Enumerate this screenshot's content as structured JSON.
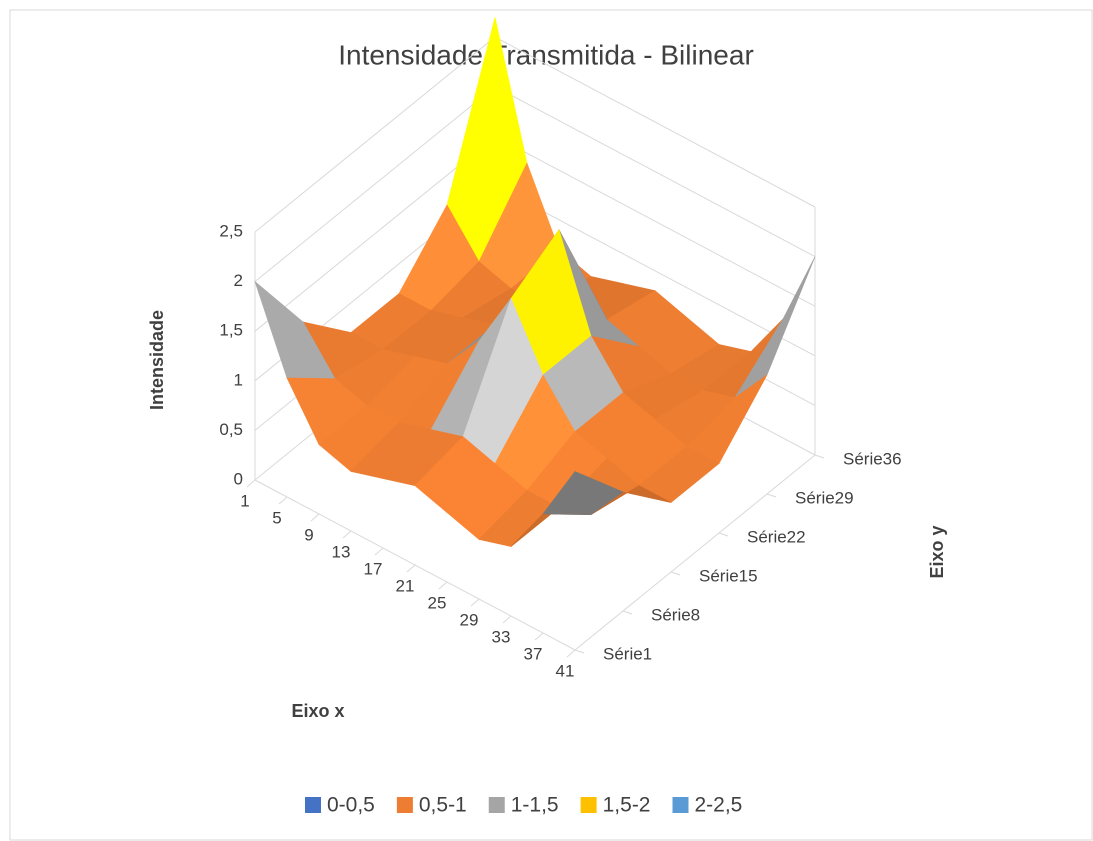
{
  "chart_data": {
    "type": "surface",
    "title": "Intensidade Transmitida - Bilinear",
    "x_label": "Eixo x",
    "y_label": "Eixo y",
    "z_label": "Intensidade",
    "categories": [
      1,
      5,
      9,
      13,
      17,
      21,
      25,
      29,
      33,
      37,
      41
    ],
    "series": [
      {
        "name": "Série1",
        "values": [
          2.0,
          1.2,
          0.7,
          0.6,
          0.7,
          0.8,
          0.7,
          0.6,
          0.7,
          1.2,
          1.8
        ]
      },
      {
        "name": "Série8",
        "values": [
          1.2,
          0.8,
          0.7,
          0.7,
          0.8,
          0.9,
          0.8,
          0.7,
          0.7,
          0.8,
          1.2
        ]
      },
      {
        "name": "Série15",
        "values": [
          0.7,
          0.7,
          0.8,
          0.9,
          1.3,
          1.9,
          1.3,
          0.9,
          0.8,
          0.7,
          0.7
        ]
      },
      {
        "name": "Série22",
        "values": [
          0.7,
          0.7,
          0.8,
          0.9,
          1.3,
          2.2,
          1.3,
          0.9,
          0.8,
          0.7,
          0.7
        ]
      },
      {
        "name": "Série29",
        "values": [
          1.2,
          0.8,
          0.7,
          0.7,
          0.8,
          0.9,
          0.8,
          0.7,
          0.7,
          0.8,
          1.2
        ]
      },
      {
        "name": "Série36",
        "values": [
          2.7,
          1.4,
          0.7,
          0.6,
          0.7,
          0.8,
          0.7,
          0.6,
          0.7,
          1.2,
          2.0
        ]
      }
    ],
    "zlim": [
      0,
      2.5
    ],
    "zticks": [
      0,
      {
        "value": 0.5,
        "label": "0,5"
      },
      1,
      {
        "value": 1.5,
        "label": "1,5"
      },
      2,
      {
        "value": 2.5,
        "label": "2,5"
      }
    ],
    "legend": [
      {
        "name": "0-0,5",
        "color": "#4472c4",
        "range": [
          0,
          0.5
        ]
      },
      {
        "name": "0,5-1",
        "color": "#ed7d31",
        "range": [
          0.5,
          1
        ]
      },
      {
        "name": "1-1,5",
        "color": "#a5a5a5",
        "range": [
          1,
          1.5
        ]
      },
      {
        "name": "1,5-2",
        "color": "#ffc000",
        "range": [
          1.5,
          2
        ]
      },
      {
        "name": "2-2,5",
        "color": "#5b9bd5",
        "range": [
          2,
          2.5
        ]
      }
    ]
  }
}
